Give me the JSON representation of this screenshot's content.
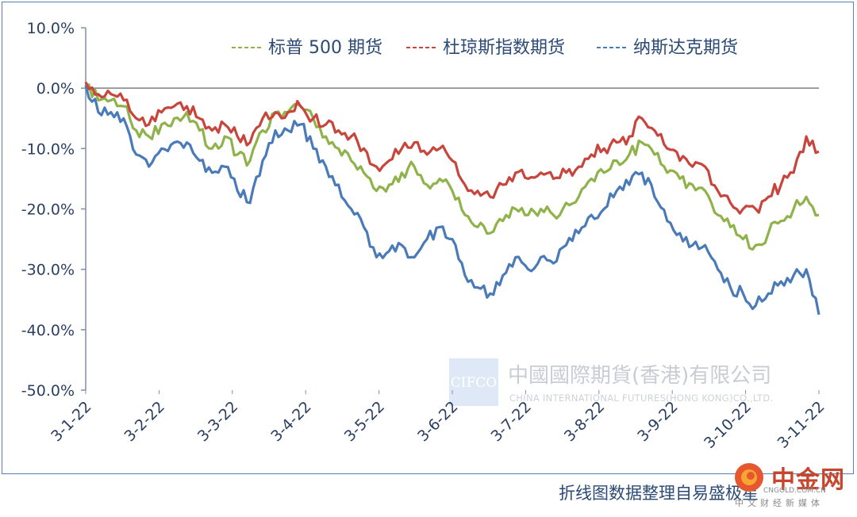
{
  "chart_data": {
    "type": "line",
    "ylim": [
      -50,
      10
    ],
    "yticks": [
      "10.0%",
      "0.0%",
      "-10.0%",
      "-20.0%",
      "-30.0%",
      "-40.0%",
      "-50.0%"
    ],
    "ytick_values": [
      10,
      0,
      -10,
      -20,
      -30,
      -40,
      -50
    ],
    "xticks": [
      "3-1-22",
      "3-2-22",
      "3-3-22",
      "3-4-22",
      "3-5-22",
      "3-6-22",
      "3-7-22",
      "3-8-22",
      "3-9-22",
      "3-10-22",
      "3-11-22"
    ],
    "grid": false,
    "legend_position": "top-right",
    "series": [
      {
        "name": "标普 500 期货",
        "color": "#8fb34a",
        "points": [
          [
            0,
            0.5
          ],
          [
            1,
            -2
          ],
          [
            2,
            -2
          ],
          [
            3,
            -3
          ],
          [
            4,
            -7
          ],
          [
            5,
            -8
          ],
          [
            6,
            -6
          ],
          [
            7,
            -5
          ],
          [
            8,
            -4
          ],
          [
            9,
            -7
          ],
          [
            10,
            -10
          ],
          [
            11,
            -8
          ],
          [
            12,
            -11
          ],
          [
            13,
            -12
          ],
          [
            14,
            -7
          ],
          [
            15,
            -4
          ],
          [
            16,
            -4
          ],
          [
            17,
            -3
          ],
          [
            18,
            -5
          ],
          [
            19,
            -8
          ],
          [
            20,
            -10
          ],
          [
            21,
            -12
          ],
          [
            22,
            -14
          ],
          [
            23,
            -17
          ],
          [
            24,
            -16
          ],
          [
            25,
            -14
          ],
          [
            26,
            -13
          ],
          [
            27,
            -16
          ],
          [
            28,
            -15
          ],
          [
            29,
            -17
          ],
          [
            30,
            -21
          ],
          [
            31,
            -23
          ],
          [
            32,
            -24
          ],
          [
            33,
            -22
          ],
          [
            34,
            -20
          ],
          [
            35,
            -21
          ],
          [
            36,
            -20
          ],
          [
            37,
            -21
          ],
          [
            38,
            -19
          ],
          [
            39,
            -18
          ],
          [
            40,
            -15
          ],
          [
            41,
            -14
          ],
          [
            42,
            -12
          ],
          [
            43,
            -11
          ],
          [
            44,
            -9
          ],
          [
            45,
            -11
          ],
          [
            46,
            -14
          ],
          [
            47,
            -15
          ],
          [
            48,
            -16
          ],
          [
            49,
            -17
          ],
          [
            50,
            -21
          ],
          [
            51,
            -23
          ],
          [
            52,
            -25
          ],
          [
            53,
            -26
          ],
          [
            54,
            -24
          ],
          [
            55,
            -22
          ],
          [
            56,
            -20
          ],
          [
            57,
            -18
          ],
          [
            58,
            -21
          ]
        ]
      },
      {
        "name": "杜琼斯指数期货",
        "color": "#c8453d",
        "points": [
          [
            0,
            1
          ],
          [
            1,
            -1
          ],
          [
            2,
            -1
          ],
          [
            3,
            -2
          ],
          [
            4,
            -5
          ],
          [
            5,
            -6
          ],
          [
            6,
            -4
          ],
          [
            7,
            -3
          ],
          [
            8,
            -3
          ],
          [
            9,
            -5
          ],
          [
            10,
            -7
          ],
          [
            11,
            -6
          ],
          [
            12,
            -8
          ],
          [
            13,
            -9
          ],
          [
            14,
            -5
          ],
          [
            15,
            -4
          ],
          [
            16,
            -4
          ],
          [
            17,
            -3
          ],
          [
            18,
            -5
          ],
          [
            19,
            -6
          ],
          [
            20,
            -7
          ],
          [
            21,
            -8
          ],
          [
            22,
            -10
          ],
          [
            23,
            -13
          ],
          [
            24,
            -12
          ],
          [
            25,
            -10
          ],
          [
            26,
            -9
          ],
          [
            27,
            -11
          ],
          [
            28,
            -10
          ],
          [
            29,
            -12
          ],
          [
            30,
            -16
          ],
          [
            31,
            -17
          ],
          [
            32,
            -18
          ],
          [
            33,
            -16
          ],
          [
            34,
            -14
          ],
          [
            35,
            -15
          ],
          [
            36,
            -14
          ],
          [
            37,
            -15
          ],
          [
            38,
            -14
          ],
          [
            39,
            -13
          ],
          [
            40,
            -11
          ],
          [
            41,
            -10
          ],
          [
            42,
            -9
          ],
          [
            43,
            -8
          ],
          [
            44,
            -5
          ],
          [
            45,
            -7
          ],
          [
            46,
            -10
          ],
          [
            47,
            -12
          ],
          [
            48,
            -13
          ],
          [
            49,
            -13
          ],
          [
            50,
            -17
          ],
          [
            51,
            -19
          ],
          [
            52,
            -20
          ],
          [
            53,
            -20
          ],
          [
            54,
            -18
          ],
          [
            55,
            -16
          ],
          [
            56,
            -14
          ],
          [
            57,
            -8
          ],
          [
            58,
            -10.5
          ]
        ]
      },
      {
        "name": "纳斯达克期货",
        "color": "#4a7ab8",
        "points": [
          [
            0,
            0.5
          ],
          [
            1,
            -4
          ],
          [
            2,
            -4
          ],
          [
            3,
            -5
          ],
          [
            4,
            -11
          ],
          [
            5,
            -13
          ],
          [
            6,
            -10
          ],
          [
            7,
            -9
          ],
          [
            8,
            -9
          ],
          [
            9,
            -12
          ],
          [
            10,
            -14
          ],
          [
            11,
            -13
          ],
          [
            12,
            -17
          ],
          [
            13,
            -19
          ],
          [
            14,
            -12
          ],
          [
            15,
            -7
          ],
          [
            16,
            -7
          ],
          [
            17,
            -6
          ],
          [
            18,
            -10
          ],
          [
            19,
            -13
          ],
          [
            20,
            -16
          ],
          [
            21,
            -20
          ],
          [
            22,
            -23
          ],
          [
            23,
            -28
          ],
          [
            24,
            -27
          ],
          [
            25,
            -26
          ],
          [
            26,
            -28
          ],
          [
            27,
            -25
          ],
          [
            28,
            -23
          ],
          [
            29,
            -25
          ],
          [
            30,
            -31
          ],
          [
            31,
            -33
          ],
          [
            32,
            -34
          ],
          [
            33,
            -31
          ],
          [
            34,
            -28
          ],
          [
            35,
            -30
          ],
          [
            36,
            -28
          ],
          [
            37,
            -29
          ],
          [
            38,
            -26
          ],
          [
            39,
            -24
          ],
          [
            40,
            -21
          ],
          [
            41,
            -20
          ],
          [
            42,
            -17
          ],
          [
            43,
            -16
          ],
          [
            44,
            -14
          ],
          [
            45,
            -18
          ],
          [
            46,
            -22
          ],
          [
            47,
            -24
          ],
          [
            48,
            -26
          ],
          [
            49,
            -26
          ],
          [
            50,
            -30
          ],
          [
            51,
            -33
          ],
          [
            52,
            -34
          ],
          [
            53,
            -36
          ],
          [
            54,
            -34
          ],
          [
            55,
            -32
          ],
          [
            56,
            -31
          ],
          [
            57,
            -30
          ],
          [
            58,
            -37.5
          ]
        ]
      }
    ]
  },
  "watermark": {
    "badge": "CIFCO",
    "company_cn": "中國國際期貨(香港)有限公司",
    "company_en": "CHINA INTERNATIONAL FUTURES(HONG KONG)CO.,LTD."
  },
  "footer": {
    "note": "折线图数据整理自易盛极星",
    "site_name": "中金网",
    "site_url": "CNGOLD.COM.CN",
    "site_tagline": "中文财经新媒体"
  }
}
